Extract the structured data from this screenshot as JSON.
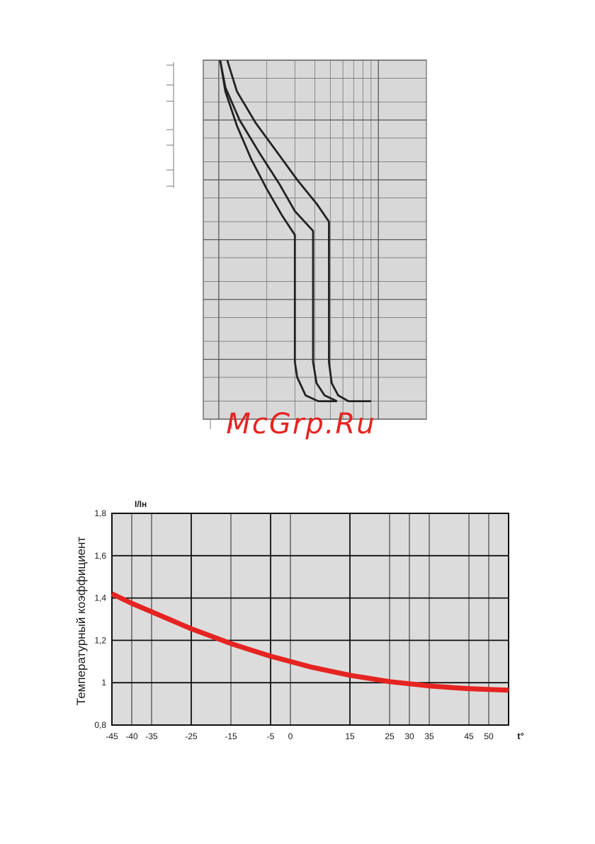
{
  "watermark": "McGrp.Ru",
  "chart_data": [
    {
      "type": "line",
      "title": "",
      "xlabel": "",
      "ylabel": "",
      "xscale": "log",
      "yscale": "log",
      "tick_labels_visible": false,
      "background_color": "#d8d8d8",
      "line_color": "#222222",
      "series": [
        {
          "x": [
            1.02,
            1.1,
            1.3,
            1.6,
            2.0,
            2.5,
            3.0,
            3.0,
            3.1,
            3.5,
            4.2,
            5.5
          ],
          "y": [
            10000,
            3000,
            800,
            220,
            70,
            25,
            12,
            0.09,
            0.05,
            0.025,
            0.02,
            0.02
          ]
        },
        {
          "x": [
            1.02,
            1.1,
            1.35,
            1.8,
            2.4,
            3.0,
            3.9,
            3.9,
            4.1,
            4.6,
            5.5
          ],
          "y": [
            10000,
            3500,
            1000,
            280,
            85,
            30,
            14,
            0.09,
            0.04,
            0.025,
            0.02
          ]
        },
        {
          "x": [
            1.13,
            1.3,
            1.7,
            2.3,
            3.1,
            4.1,
            4.9,
            4.9,
            5.1,
            5.6,
            6.5,
            9.0
          ],
          "y": [
            10000,
            3000,
            900,
            300,
            100,
            40,
            20,
            0.09,
            0.04,
            0.025,
            0.02,
            0.02
          ]
        }
      ]
    },
    {
      "type": "line",
      "title": "",
      "ylabel": "Температурный коэффициент",
      "ylabel_top": "I/Iн",
      "xlabel": "t°",
      "x_ticks": [
        -45,
        -40,
        -35,
        -25,
        -15,
        -5,
        0,
        15,
        25,
        30,
        35,
        45,
        50
      ],
      "x_tick_labels": [
        "-45",
        "-40",
        "-35",
        "-25",
        "-15",
        "-5",
        "0",
        "15",
        "25",
        "30",
        "35",
        "45",
        "50"
      ],
      "y_ticks": [
        0.8,
        1,
        1.2,
        1.4,
        1.6,
        1.8
      ],
      "y_tick_labels": [
        "0,8",
        "1",
        "1,2",
        "1,4",
        "1,6",
        "1,8"
      ],
      "xlim": [
        -45,
        55
      ],
      "ylim": [
        0.8,
        1.8
      ],
      "grid": true,
      "background_color": "#dcdcdc",
      "line_color": "#e52421",
      "series": [
        {
          "x": [
            -45,
            -40,
            -35,
            -30,
            -25,
            -20,
            -15,
            -10,
            -5,
            0,
            5,
            10,
            15,
            20,
            25,
            30,
            35,
            40,
            45,
            50,
            55
          ],
          "y": [
            1.42,
            1.375,
            1.335,
            1.295,
            1.255,
            1.22,
            1.185,
            1.155,
            1.125,
            1.1,
            1.075,
            1.055,
            1.035,
            1.02,
            1.005,
            0.995,
            0.985,
            0.978,
            0.972,
            0.968,
            0.965
          ]
        }
      ]
    }
  ]
}
